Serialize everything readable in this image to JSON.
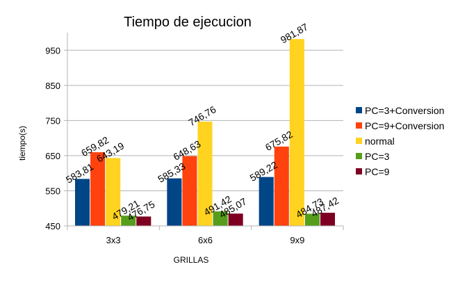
{
  "chart_data": {
    "type": "bar",
    "title": "Tiempo de ejecucion",
    "xlabel": "GRILLAS",
    "ylabel": "tiempo(s)",
    "categories": [
      "3x3",
      "6x6",
      "9x9"
    ],
    "ylim": [
      450,
      1000
    ],
    "yticks": [
      450,
      550,
      650,
      750,
      850,
      950
    ],
    "grid": true,
    "legend_position": "right",
    "series": [
      {
        "name": "PC=3+Conversion",
        "color": "#004586",
        "values": [
          583.81,
          585.33,
          589.22
        ],
        "labels": [
          "583,81",
          "585,33",
          "589,22"
        ]
      },
      {
        "name": "PC=9+Conversion",
        "color": "#ff420e",
        "values": [
          659.82,
          648.63,
          675.82
        ],
        "labels": [
          "659,82",
          "648,63",
          "675,82"
        ]
      },
      {
        "name": "normal",
        "color": "#ffd320",
        "values": [
          643.19,
          746.76,
          981.87
        ],
        "labels": [
          "643,19",
          "746,76",
          "981,87"
        ]
      },
      {
        "name": "PC=3",
        "color": "#579d1c",
        "values": [
          479.21,
          491.42,
          484.73
        ],
        "labels": [
          "479,21",
          "491,42",
          "484,73"
        ]
      },
      {
        "name": "PC=9",
        "color": "#7e0021",
        "values": [
          476.75,
          485.07,
          487.42
        ],
        "labels": [
          "476,75",
          "485,07",
          "487,42"
        ]
      }
    ]
  }
}
